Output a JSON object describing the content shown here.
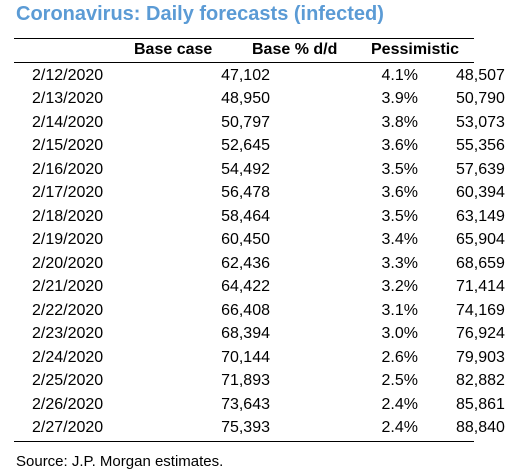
{
  "title": "Coronavirus: Daily forecasts (infected)",
  "source": "Source: J.P. Morgan estimates.",
  "chart_data": {
    "type": "table",
    "title": "Coronavirus: Daily forecasts (infected)",
    "columns": [
      "",
      "Base case",
      "Base % d/d",
      "Pessimistic"
    ],
    "rows": [
      [
        "2/12/2020",
        "47,102",
        "4.1%",
        "48,507"
      ],
      [
        "2/13/2020",
        "48,950",
        "3.9%",
        "50,790"
      ],
      [
        "2/14/2020",
        "50,797",
        "3.8%",
        "53,073"
      ],
      [
        "2/15/2020",
        "52,645",
        "3.6%",
        "55,356"
      ],
      [
        "2/16/2020",
        "54,492",
        "3.5%",
        "57,639"
      ],
      [
        "2/17/2020",
        "56,478",
        "3.6%",
        "60,394"
      ],
      [
        "2/18/2020",
        "58,464",
        "3.5%",
        "63,149"
      ],
      [
        "2/19/2020",
        "60,450",
        "3.4%",
        "65,904"
      ],
      [
        "2/20/2020",
        "62,436",
        "3.3%",
        "68,659"
      ],
      [
        "2/21/2020",
        "64,422",
        "3.2%",
        "71,414"
      ],
      [
        "2/22/2020",
        "66,408",
        "3.1%",
        "74,169"
      ],
      [
        "2/23/2020",
        "68,394",
        "3.0%",
        "76,924"
      ],
      [
        "2/24/2020",
        "70,144",
        "2.6%",
        "79,903"
      ],
      [
        "2/25/2020",
        "71,893",
        "2.5%",
        "82,882"
      ],
      [
        "2/26/2020",
        "73,643",
        "2.4%",
        "85,861"
      ],
      [
        "2/27/2020",
        "75,393",
        "2.4%",
        "88,840"
      ]
    ],
    "source": "Source: J.P. Morgan estimates."
  }
}
